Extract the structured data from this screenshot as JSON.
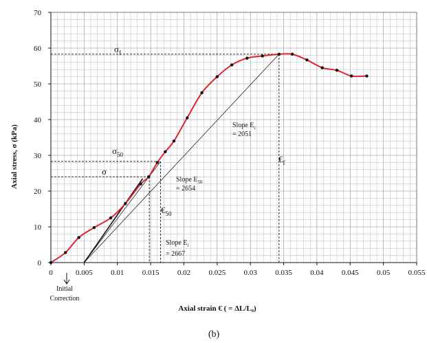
{
  "chart_data": {
    "type": "line",
    "caption": "(b)",
    "xlabel": "Axial strain € ( = ΔL/L₀)",
    "ylabel": "Axial stress, σ (kPa)",
    "xlim": [
      0,
      0.055
    ],
    "ylim": [
      0,
      70
    ],
    "x_ticks": [
      "0",
      "0.005",
      "0.01",
      "0.015",
      "0.02",
      "0.025",
      "0.03",
      "0.035",
      "0.04",
      "0.045",
      "0.05",
      "0.055"
    ],
    "y_ticks": [
      "0",
      "10",
      "20",
      "30",
      "40",
      "50",
      "60",
      "70"
    ],
    "grid": true,
    "series": [
      {
        "color": "#e0242e",
        "x": [
          0,
          0.0022,
          0.0042,
          0.0065,
          0.009,
          0.0112,
          0.0135,
          0.0147,
          0.016,
          0.0172,
          0.0185,
          0.0205,
          0.0227,
          0.025,
          0.0272,
          0.0295,
          0.0318,
          0.0343,
          0.0363,
          0.0385,
          0.0408,
          0.043,
          0.0452,
          0.0475
        ],
        "y": [
          0,
          2.8,
          7.0,
          9.8,
          12.5,
          16.5,
          22.0,
          24.0,
          28.0,
          31.0,
          34.0,
          40.5,
          47.5,
          52.0,
          55.3,
          57.2,
          57.8,
          58.3,
          58.3,
          56.7,
          54.5,
          53.8,
          52.2,
          52.2
        ]
      }
    ],
    "annotations": {
      "sigma_f": "σ",
      "sigma_f_sub": "f",
      "sigma_50": "σ",
      "sigma_50_sub": "50",
      "sigma": "σ",
      "eps_f": "€",
      "eps_f_sub": "f",
      "eps_50": "€",
      "eps_50_sub": "50",
      "slope_ec_line1": "Slope E",
      "slope_ec_sub": "c",
      "slope_ec_line2": "= 2051",
      "slope_e50_line1": "Slope E",
      "slope_e50_sub": "50",
      "slope_e50_line2": "= 2654",
      "slope_ei_line1": "Slope E",
      "slope_ei_sub": "i",
      "slope_ei_line2": "= 2667",
      "initial_correction_line1": "Initial",
      "initial_correction_line2": "Correction"
    },
    "reference_levels": {
      "sigma_f": 58.3,
      "sigma_50": 28.3,
      "sigma": 24.0,
      "eps_f": 0.0343,
      "eps_50": 0.0165,
      "eps_sigma": 0.0148,
      "initial_correction": 0.005
    }
  }
}
